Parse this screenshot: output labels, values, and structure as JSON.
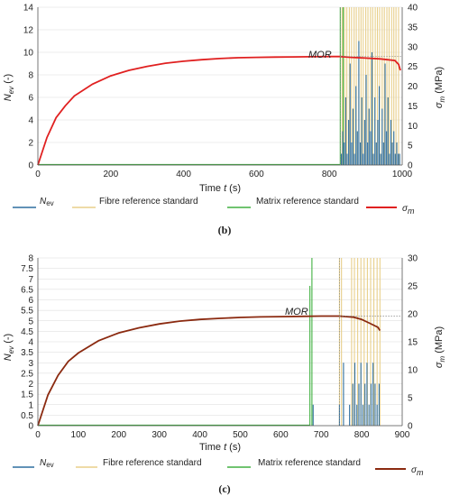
{
  "chart_data": [
    {
      "type": "line",
      "panel_label": "(b)",
      "xlabel_prefix": "Time ",
      "xlabel_var": "t",
      "xlabel_unit": " (s)",
      "ylabel_left_var": "N",
      "ylabel_left_sub": "ev",
      "ylabel_left_unit": " (-)",
      "ylabel_right_var": "σ",
      "ylabel_right_sub": "m",
      "ylabel_right_unit": " (MPa)",
      "xlim": [
        0,
        1000
      ],
      "xticks": [
        "0",
        "200",
        "400",
        "600",
        "800",
        "1000"
      ],
      "ylim_left": [
        0,
        14
      ],
      "yticks_left": [
        "0",
        "2",
        "4",
        "6",
        "8",
        "10",
        "12",
        "14"
      ],
      "ylim_right": [
        0,
        40
      ],
      "yticks_right": [
        "0",
        "5",
        "10",
        "15",
        "20",
        "25",
        "30",
        "35",
        "40"
      ],
      "annotation": "MOR",
      "mor": {
        "x": 830,
        "stress": 27.5
      },
      "series": [
        {
          "name": "σm",
          "axis": "right",
          "color": "#e02020",
          "x": [
            0,
            25,
            50,
            75,
            100,
            150,
            200,
            250,
            300,
            350,
            400,
            450,
            500,
            550,
            600,
            650,
            700,
            750,
            800,
            830,
            860,
            900,
            940,
            980,
            990,
            995
          ],
          "y": [
            0,
            7,
            12,
            15,
            17.5,
            20.5,
            22.6,
            24.0,
            25.0,
            25.8,
            26.3,
            26.7,
            27.0,
            27.2,
            27.3,
            27.35,
            27.4,
            27.45,
            27.5,
            27.5,
            27.3,
            27.1,
            26.9,
            26.5,
            25.5,
            24.0
          ]
        },
        {
          "name": "Fibre reference standard",
          "color": "#e8cf8a",
          "axis": "right",
          "x": [
            835,
            842,
            848,
            855,
            861,
            868,
            874,
            881,
            887,
            893,
            900,
            906,
            913,
            919,
            926,
            932,
            938,
            945,
            951,
            958,
            964,
            971,
            977,
            983,
            990
          ],
          "y": [
            40,
            40,
            40,
            40,
            40,
            40,
            40,
            40,
            40,
            40,
            40,
            40,
            40,
            40,
            40,
            40,
            40,
            40,
            40,
            40,
            40,
            40,
            40,
            40,
            40
          ]
        },
        {
          "name": "Matrix reference standard",
          "color": "#40b040",
          "axis": "right",
          "x": [
            830,
            838
          ],
          "y": [
            40,
            40
          ]
        },
        {
          "name": "Nev",
          "color": "#2f6f9f",
          "axis": "left",
          "x": [
            833,
            837,
            841,
            845,
            849,
            853,
            857,
            861,
            865,
            869,
            873,
            877,
            881,
            885,
            889,
            893,
            897,
            901,
            905,
            909,
            913,
            917,
            921,
            925,
            929,
            933,
            937,
            941,
            945,
            949,
            953,
            957,
            961,
            965,
            969,
            973,
            977,
            981,
            985,
            989,
            993
          ],
          "y": [
            1,
            3,
            2,
            6,
            1,
            4,
            9,
            2,
            5,
            1,
            7,
            3,
            11,
            2,
            6,
            1,
            4,
            8,
            2,
            5,
            3,
            10,
            1,
            6,
            2,
            4,
            7,
            1,
            5,
            2,
            9,
            3,
            6,
            1,
            4,
            2,
            3,
            1,
            2,
            1,
            1
          ]
        }
      ]
    },
    {
      "type": "line",
      "panel_label": "(c)",
      "xlabel_prefix": "Time ",
      "xlabel_var": "t",
      "xlabel_unit": " (s)",
      "ylabel_left_var": "N",
      "ylabel_left_sub": "ev",
      "ylabel_left_unit": " (-)",
      "ylabel_right_var": "σ",
      "ylabel_right_sub": "m",
      "ylabel_right_unit": " (MPa)",
      "xlim": [
        0,
        900
      ],
      "xticks": [
        "0",
        "100",
        "200",
        "300",
        "400",
        "500",
        "600",
        "700",
        "800",
        "900"
      ],
      "ylim_left": [
        0,
        8
      ],
      "yticks_left": [
        "0",
        "0.5",
        "1",
        "1.5",
        "2",
        "2.5",
        "3",
        "3.5",
        "4",
        "4.5",
        "5",
        "5.5",
        "6",
        "6.5",
        "7",
        "7.5",
        "8"
      ],
      "ylim_right": [
        0,
        30
      ],
      "yticks_right": [
        "0",
        "5",
        "10",
        "15",
        "20",
        "25",
        "30"
      ],
      "annotation": "MOR",
      "mor": {
        "x": 745,
        "stress": 19.6
      },
      "series": [
        {
          "name": "σm",
          "axis": "right",
          "color": "#8b2a10",
          "x": [
            0,
            25,
            50,
            75,
            100,
            150,
            200,
            250,
            300,
            350,
            400,
            450,
            500,
            550,
            600,
            650,
            700,
            745,
            780,
            800,
            820,
            840,
            845
          ],
          "y": [
            0,
            5.5,
            9.0,
            11.5,
            13.0,
            15.2,
            16.6,
            17.5,
            18.2,
            18.7,
            19.0,
            19.2,
            19.35,
            19.45,
            19.5,
            19.55,
            19.6,
            19.6,
            19.4,
            19.0,
            18.3,
            17.6,
            17.0
          ]
        },
        {
          "name": "Fibre reference standard",
          "color": "#e8cf8a",
          "axis": "right",
          "x": [
            745,
            750,
            775,
            782,
            790,
            798,
            806,
            814,
            822,
            830,
            838,
            845
          ],
          "y": [
            30,
            30,
            30,
            30,
            30,
            30,
            30,
            30,
            30,
            30,
            30,
            30
          ]
        },
        {
          "name": "Matrix reference standard",
          "color": "#40b040",
          "axis": "right",
          "x": [
            672,
            677
          ],
          "y": [
            25,
            30
          ]
        },
        {
          "name": "Nev",
          "color": "#2f6f9f",
          "axis": "left",
          "x": [
            680,
            745,
            755,
            770,
            778,
            783,
            788,
            793,
            798,
            803,
            808,
            813,
            818,
            823,
            828,
            833,
            838,
            843
          ],
          "y": [
            1,
            1,
            3,
            1,
            2,
            3,
            1,
            2,
            3,
            1,
            2,
            3,
            1,
            2,
            3,
            2,
            1,
            2
          ]
        }
      ]
    }
  ],
  "legend": {
    "nev_var": "N",
    "nev_sub": "ev",
    "fibre": "Fibre reference standard",
    "matrix": "Matrix reference standard",
    "sigma_var": "σ",
    "sigma_sub": "m"
  },
  "colors": {
    "nev": "#2f6f9f",
    "fibre": "#e8cf8a",
    "matrix": "#40b040",
    "sigma_b": "#e02020",
    "sigma_c": "#8b2a10",
    "grid": "#d9d9d9",
    "axis": "#555555"
  }
}
